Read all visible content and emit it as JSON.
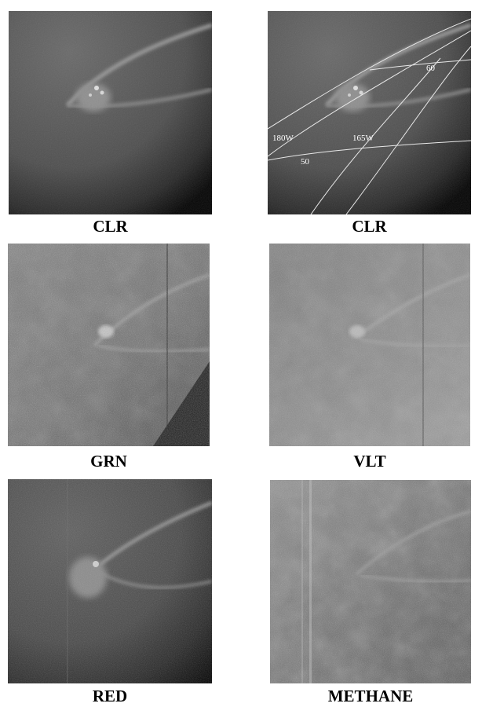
{
  "panels": [
    {
      "id": "clr-raw",
      "filter": "CLR"
    },
    {
      "id": "clr-grid",
      "filter": "CLR",
      "grid_labels": [
        "60",
        "180W",
        "165W",
        "50"
      ]
    },
    {
      "id": "grn",
      "filter": "GRN"
    },
    {
      "id": "vlt",
      "filter": "VLT"
    },
    {
      "id": "red",
      "filter": "RED"
    },
    {
      "id": "methane",
      "filter": "METHANE"
    }
  ],
  "colors": {
    "background": "#ffffff",
    "caption": "#000000",
    "grid_lines": "#e8e8e8"
  }
}
